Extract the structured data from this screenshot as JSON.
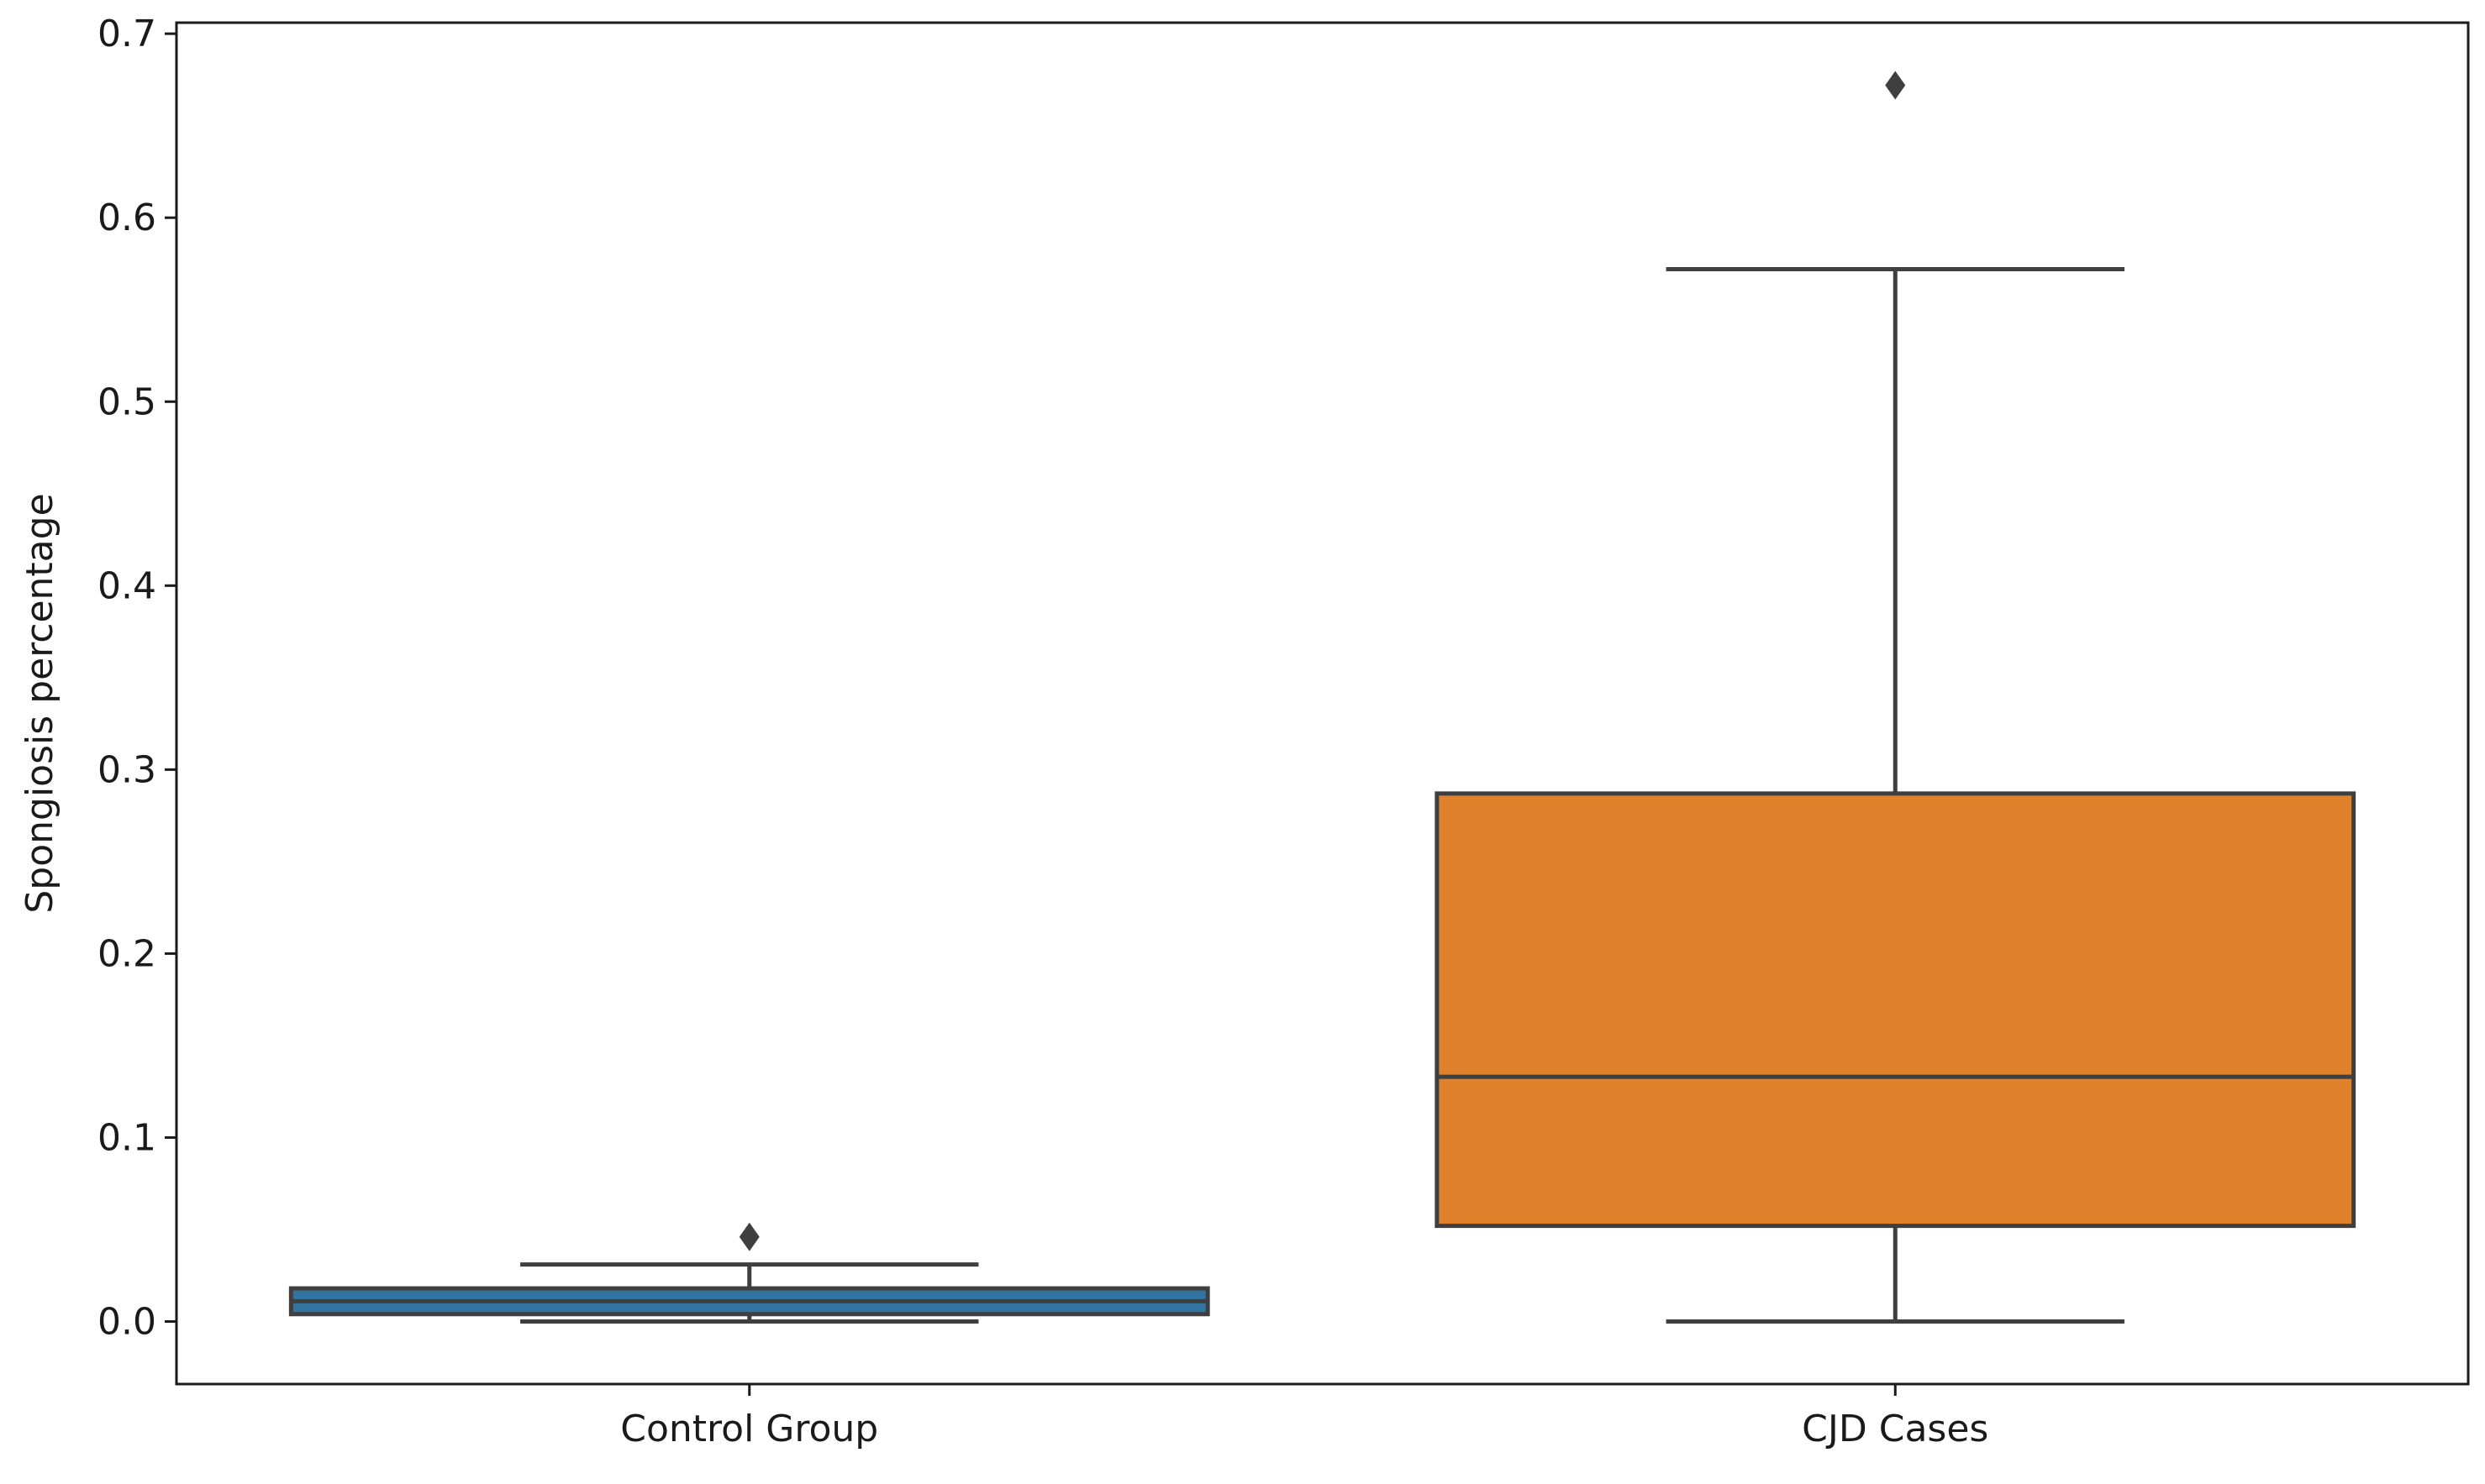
{
  "chart_data": {
    "type": "box",
    "title": "",
    "xlabel": "",
    "ylabel": "Spongiosis percentage",
    "ylim": [
      -0.034,
      0.706
    ],
    "yticks": [
      0.0,
      0.1,
      0.2,
      0.3,
      0.4,
      0.5,
      0.6,
      0.7
    ],
    "ytick_labels": [
      "0.0",
      "0.1",
      "0.2",
      "0.3",
      "0.4",
      "0.5",
      "0.6",
      "0.7"
    ],
    "grid": false,
    "legend": "none",
    "categories": [
      "Control Group",
      "CJD Cases"
    ],
    "boxes": [
      {
        "category": "Control Group",
        "whisker_low": 0.0,
        "q1": 0.004,
        "median": 0.011,
        "q3": 0.018,
        "whisker_high": 0.031,
        "outliers": [
          0.046
        ],
        "color": "#3274a1"
      },
      {
        "category": "CJD Cases",
        "whisker_low": 0.0,
        "q1": 0.052,
        "median": 0.133,
        "q3": 0.287,
        "whisker_high": 0.572,
        "outliers": [
          0.672
        ],
        "color": "#e1812c"
      }
    ],
    "line_color": "#3f3f3f"
  }
}
